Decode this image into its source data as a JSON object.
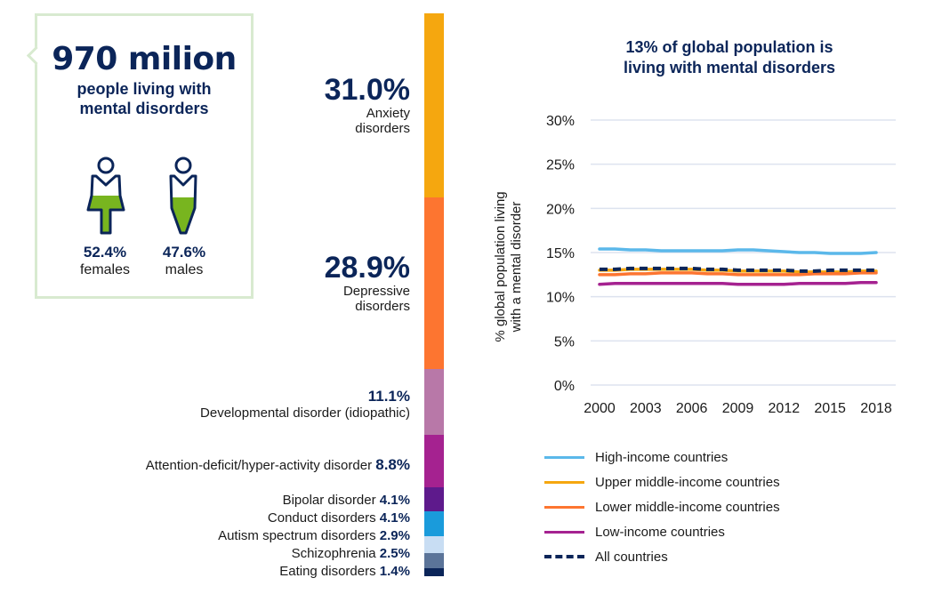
{
  "summary": {
    "total": "970 milion",
    "subtitle_line1": "people living with",
    "subtitle_line2": "mental disorders",
    "female_pct": "52.4%",
    "female_label": "females",
    "male_pct": "47.6%",
    "male_label": "males",
    "fill_color": "#78b51f"
  },
  "disorders": [
    {
      "label_line1": "Anxiety",
      "label_line2": "disorders",
      "pct": "31.0%",
      "value": 31.0,
      "color": "#f5a70f"
    },
    {
      "label_line1": "Depressive",
      "label_line2": "disorders",
      "pct": "28.9%",
      "value": 28.9,
      "color": "#fd7530"
    },
    {
      "label": "Developmental disorder (idiopathic)",
      "pct": "11.1%",
      "value": 11.1,
      "color": "#b878a8"
    },
    {
      "label": "Attention-deficit/hyper-activity disorder",
      "pct": "8.8%",
      "value": 8.8,
      "color": "#a52290"
    },
    {
      "label": "Bipolar disorder",
      "pct": "4.1%",
      "value": 4.1,
      "color": "#5e1a8c"
    },
    {
      "label": "Conduct disorders",
      "pct": "4.1%",
      "value": 4.1,
      "color": "#1a9bdb"
    },
    {
      "label": "Autism spectrum disorders",
      "pct": "2.9%",
      "value": 2.9,
      "color": "#c8ddf3"
    },
    {
      "label": "Schizophrenia",
      "pct": "2.5%",
      "value": 2.5,
      "color": "#5b7499"
    },
    {
      "label": "Eating disorders",
      "pct": "1.4%",
      "value": 1.4,
      "color": "#0b2559"
    }
  ],
  "chart_data": {
    "type": "line",
    "title": "13% of global population is living with mental disorders",
    "title_line1": "13% of global population is",
    "title_line2": "living with mental disorders",
    "ylabel_line1": "% global population living",
    "ylabel_line2": "with a mental disorder",
    "xlabel": "",
    "ylim": [
      0,
      30
    ],
    "yticks": [
      "0%",
      "5%",
      "10%",
      "15%",
      "20%",
      "25%",
      "30%"
    ],
    "xticks": [
      "2000",
      "2003",
      "2006",
      "2009",
      "2012",
      "2015",
      "2018"
    ],
    "x": [
      2000,
      2001,
      2002,
      2003,
      2004,
      2005,
      2006,
      2007,
      2008,
      2009,
      2010,
      2011,
      2012,
      2013,
      2014,
      2015,
      2016,
      2017,
      2018
    ],
    "legend": "bottom",
    "series": [
      {
        "name": "High-income countries",
        "color": "#5bb8ea",
        "dashed": false,
        "values": [
          15.4,
          15.4,
          15.3,
          15.3,
          15.2,
          15.2,
          15.2,
          15.2,
          15.2,
          15.3,
          15.3,
          15.2,
          15.1,
          15.0,
          15.0,
          14.9,
          14.9,
          14.9,
          15.0
        ]
      },
      {
        "name": "Upper middle-income countries",
        "color": "#f5a70f",
        "dashed": false,
        "values": [
          13.0,
          13.0,
          13.1,
          13.1,
          13.1,
          13.1,
          13.1,
          13.0,
          13.0,
          12.9,
          12.9,
          12.9,
          12.9,
          12.8,
          12.8,
          12.8,
          12.8,
          12.9,
          12.9
        ]
      },
      {
        "name": "Lower middle-income countries",
        "color": "#fd7530",
        "dashed": false,
        "values": [
          12.5,
          12.5,
          12.6,
          12.6,
          12.7,
          12.7,
          12.7,
          12.6,
          12.6,
          12.5,
          12.5,
          12.5,
          12.5,
          12.5,
          12.6,
          12.6,
          12.6,
          12.7,
          12.7
        ]
      },
      {
        "name": "Low-income countries",
        "color": "#a52290",
        "dashed": false,
        "values": [
          11.4,
          11.5,
          11.5,
          11.5,
          11.5,
          11.5,
          11.5,
          11.5,
          11.5,
          11.4,
          11.4,
          11.4,
          11.4,
          11.5,
          11.5,
          11.5,
          11.5,
          11.6,
          11.6
        ]
      },
      {
        "name": "All countries",
        "color": "#0b2559",
        "dashed": true,
        "values": [
          13.1,
          13.1,
          13.2,
          13.2,
          13.2,
          13.2,
          13.2,
          13.1,
          13.1,
          13.0,
          13.0,
          13.0,
          13.0,
          12.9,
          12.9,
          13.0,
          13.0,
          13.0,
          13.0
        ]
      }
    ]
  }
}
